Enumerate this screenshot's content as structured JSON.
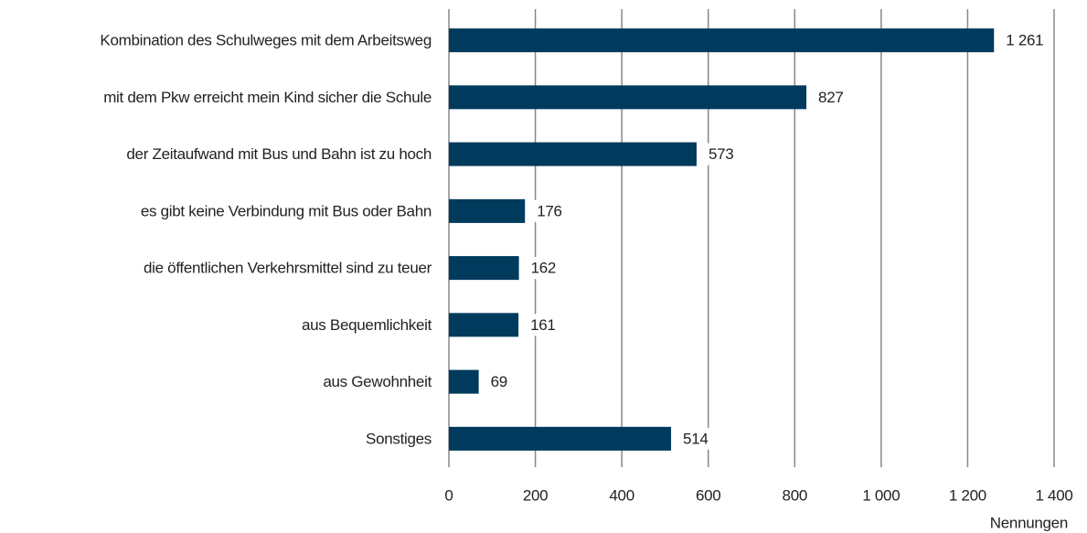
{
  "chart_data": {
    "type": "barh",
    "categories": [
      "Kombination des Schulweges mit dem Arbeitsweg",
      "mit dem Pkw  erreicht mein Kind sicher die Schule",
      "der Zeitaufwand mit Bus und Bahn ist zu hoch",
      "es gibt keine Verbindung mit Bus oder Bahn",
      "die öffentlichen Verkehrsmittel sind zu teuer",
      "aus Bequemlichkeit",
      "aus Gewohnheit",
      "Sonstiges"
    ],
    "values": [
      1261,
      827,
      573,
      176,
      162,
      161,
      69,
      514
    ],
    "value_labels": [
      "1 261",
      "827",
      "573",
      "176",
      "162",
      "161",
      "69",
      "514"
    ],
    "color": "#003a5c",
    "xlabel": "Nennungen",
    "xlim": [
      0,
      1400
    ],
    "xticks": [
      0,
      200,
      400,
      600,
      800,
      {
        "value": 1000,
        "label": "1 000"
      },
      {
        "value": 1200,
        "label": "1 200"
      },
      {
        "value": 1400,
        "label": "1 400"
      }
    ],
    "grid": true
  }
}
